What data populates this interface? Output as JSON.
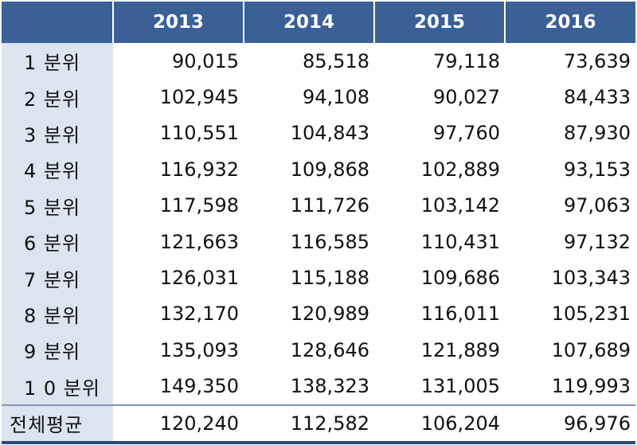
{
  "chart_data": {
    "type": "table",
    "columns": [
      "2013",
      "2014",
      "2015",
      "2016"
    ],
    "rows": [
      {
        "label": "1 분위",
        "values": [
          "90,015",
          "85,518",
          "79,118",
          "73,639"
        ]
      },
      {
        "label": "2 분위",
        "values": [
          "102,945",
          "94,108",
          "90,027",
          "84,433"
        ]
      },
      {
        "label": "3 분위",
        "values": [
          "110,551",
          "104,843",
          "97,760",
          "87,930"
        ]
      },
      {
        "label": "4 분위",
        "values": [
          "116,932",
          "109,868",
          "102,889",
          "93,153"
        ]
      },
      {
        "label": "5 분위",
        "values": [
          "117,598",
          "111,726",
          "103,142",
          "97,063"
        ]
      },
      {
        "label": "6 분위",
        "values": [
          "121,663",
          "116,585",
          "110,431",
          "97,132"
        ]
      },
      {
        "label": "7 분위",
        "values": [
          "126,031",
          "115,188",
          "109,686",
          "103,343"
        ]
      },
      {
        "label": "8 분위",
        "values": [
          "132,170",
          "120,989",
          "116,011",
          "105,231"
        ]
      },
      {
        "label": "9 분위",
        "values": [
          "135,093",
          "128,646",
          "121,889",
          "107,689"
        ]
      },
      {
        "label": "1 0 분위",
        "values": [
          "149,350",
          "138,323",
          "131,005",
          "119,993"
        ]
      }
    ],
    "total": {
      "label": "전체평균",
      "values": [
        "120,240",
        "112,582",
        "106,204",
        "96,976"
      ]
    },
    "header_color": "#3a6096",
    "label_column_color": "#dce5ef"
  }
}
